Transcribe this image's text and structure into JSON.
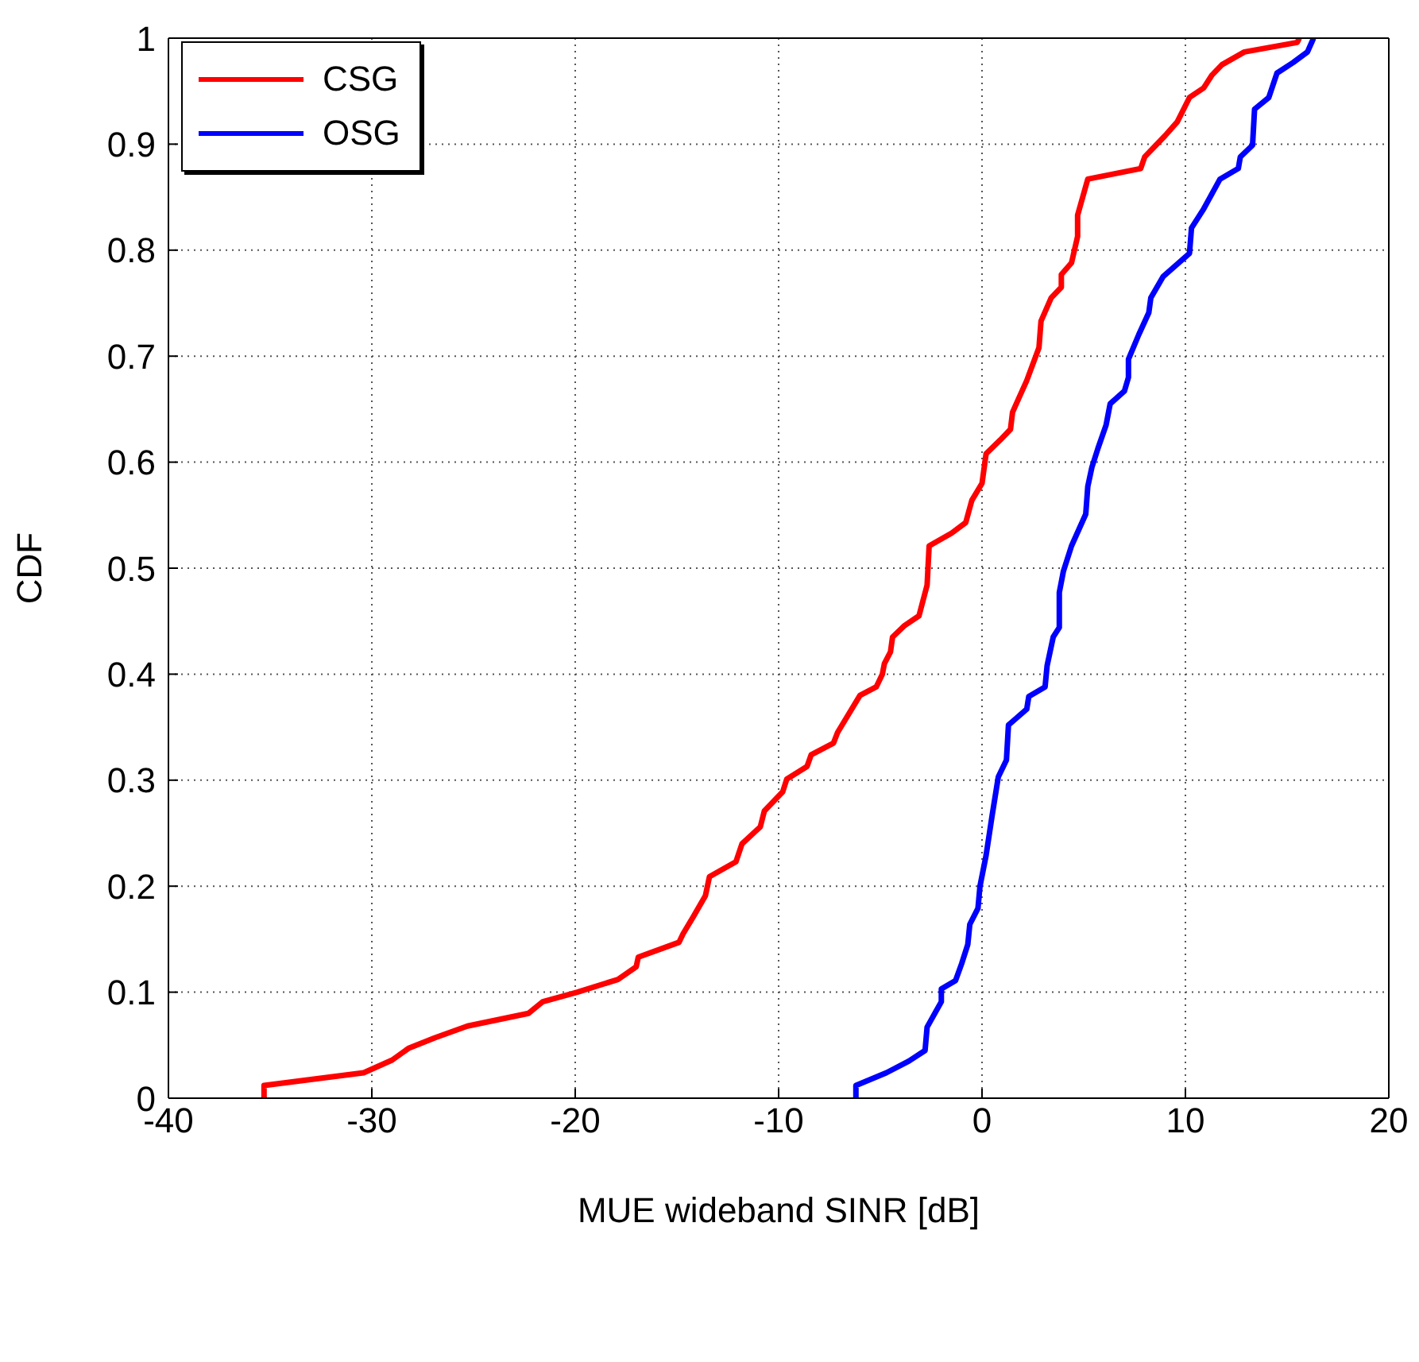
{
  "chart_data": {
    "type": "line",
    "xlabel": "MUE wideband SINR [dB]",
    "ylabel": "CDF",
    "xlim": [
      -40,
      20
    ],
    "xticks": [
      -40,
      -30,
      -20,
      -10,
      0,
      10,
      20
    ],
    "ylim": [
      0,
      1
    ],
    "yticks": [
      0,
      0.1,
      0.2,
      0.3,
      0.4,
      0.5,
      0.6,
      0.7,
      0.8,
      0.9,
      1
    ],
    "grid": true,
    "legend": "top left",
    "line_style": "solid",
    "marker": "none",
    "series": [
      {
        "name": "CSG",
        "color": "#ff0000",
        "x": [
          -35.3,
          -35.3,
          -30.4,
          -29,
          -28.2,
          -26.9,
          -25.3,
          -22.3,
          -21.6,
          -19.9,
          -17.9,
          -17,
          -16.9,
          -14.9,
          -14.7,
          -14.2,
          -13.6,
          -13.4,
          -12.1,
          -11.8,
          -10.9,
          -10.7,
          -9.8,
          -9.6,
          -8.6,
          -8.4,
          -7.3,
          -7.1,
          -6.0,
          -5.2,
          -4.9,
          -4.8,
          -4.5,
          -4.4,
          -3.8,
          -3.1,
          -2.7,
          -2.6,
          -1.5,
          -0.8,
          -0.5,
          0,
          0.2,
          0.9,
          1.4,
          1.5,
          1.8,
          2.2,
          2.8,
          2.9,
          3.4,
          3.9,
          3.9,
          4.4,
          4.7,
          4.7,
          5.2,
          7.8,
          8.0,
          9.0,
          9.6,
          10.2,
          10.9,
          11.3,
          11.8,
          12.9,
          15.5,
          15.6
        ],
        "values": [
          0,
          0.012,
          0.024,
          0.036,
          0.047,
          0.057,
          0.068,
          0.08,
          0.091,
          0.1,
          0.112,
          0.124,
          0.133,
          0.147,
          0.155,
          0.171,
          0.191,
          0.209,
          0.223,
          0.24,
          0.256,
          0.271,
          0.289,
          0.301,
          0.313,
          0.324,
          0.335,
          0.345,
          0.38,
          0.388,
          0.4,
          0.41,
          0.421,
          0.435,
          0.446,
          0.455,
          0.484,
          0.521,
          0.533,
          0.543,
          0.564,
          0.58,
          0.608,
          0.621,
          0.631,
          0.647,
          0.66,
          0.677,
          0.708,
          0.733,
          0.755,
          0.765,
          0.777,
          0.788,
          0.813,
          0.833,
          0.867,
          0.877,
          0.888,
          0.908,
          0.921,
          0.944,
          0.953,
          0.965,
          0.975,
          0.987,
          0.996,
          1
        ]
      },
      {
        "name": "OSG",
        "color": "#0000ff",
        "x": [
          -6.2,
          -6.2,
          -4.7,
          -3.6,
          -2.8,
          -2.7,
          -2.0,
          -2.0,
          -1.3,
          -1.0,
          -0.7,
          -0.6,
          -0.2,
          -0.1,
          0.2,
          0.5,
          0.8,
          1.2,
          1.3,
          2.2,
          2.3,
          3.1,
          3.2,
          3.5,
          3.8,
          3.8,
          4.0,
          4.4,
          5.1,
          5.2,
          5.4,
          5.7,
          6.1,
          6.3,
          7.0,
          7.2,
          7.2,
          7.7,
          8.2,
          8.3,
          8.9,
          10.2,
          10.3,
          10.9,
          11.7,
          12.6,
          12.7,
          13.3,
          13.4,
          14.1,
          14.5,
          15.3,
          16.0,
          16.3
        ],
        "values": [
          0,
          0.012,
          0.024,
          0.035,
          0.045,
          0.067,
          0.091,
          0.103,
          0.111,
          0.127,
          0.145,
          0.164,
          0.179,
          0.2,
          0.229,
          0.267,
          0.303,
          0.319,
          0.352,
          0.367,
          0.379,
          0.388,
          0.408,
          0.435,
          0.444,
          0.477,
          0.497,
          0.521,
          0.551,
          0.577,
          0.595,
          0.613,
          0.635,
          0.655,
          0.667,
          0.68,
          0.697,
          0.72,
          0.741,
          0.755,
          0.775,
          0.797,
          0.821,
          0.839,
          0.867,
          0.877,
          0.888,
          0.899,
          0.933,
          0.944,
          0.967,
          0.977,
          0.987,
          1
        ]
      }
    ]
  }
}
